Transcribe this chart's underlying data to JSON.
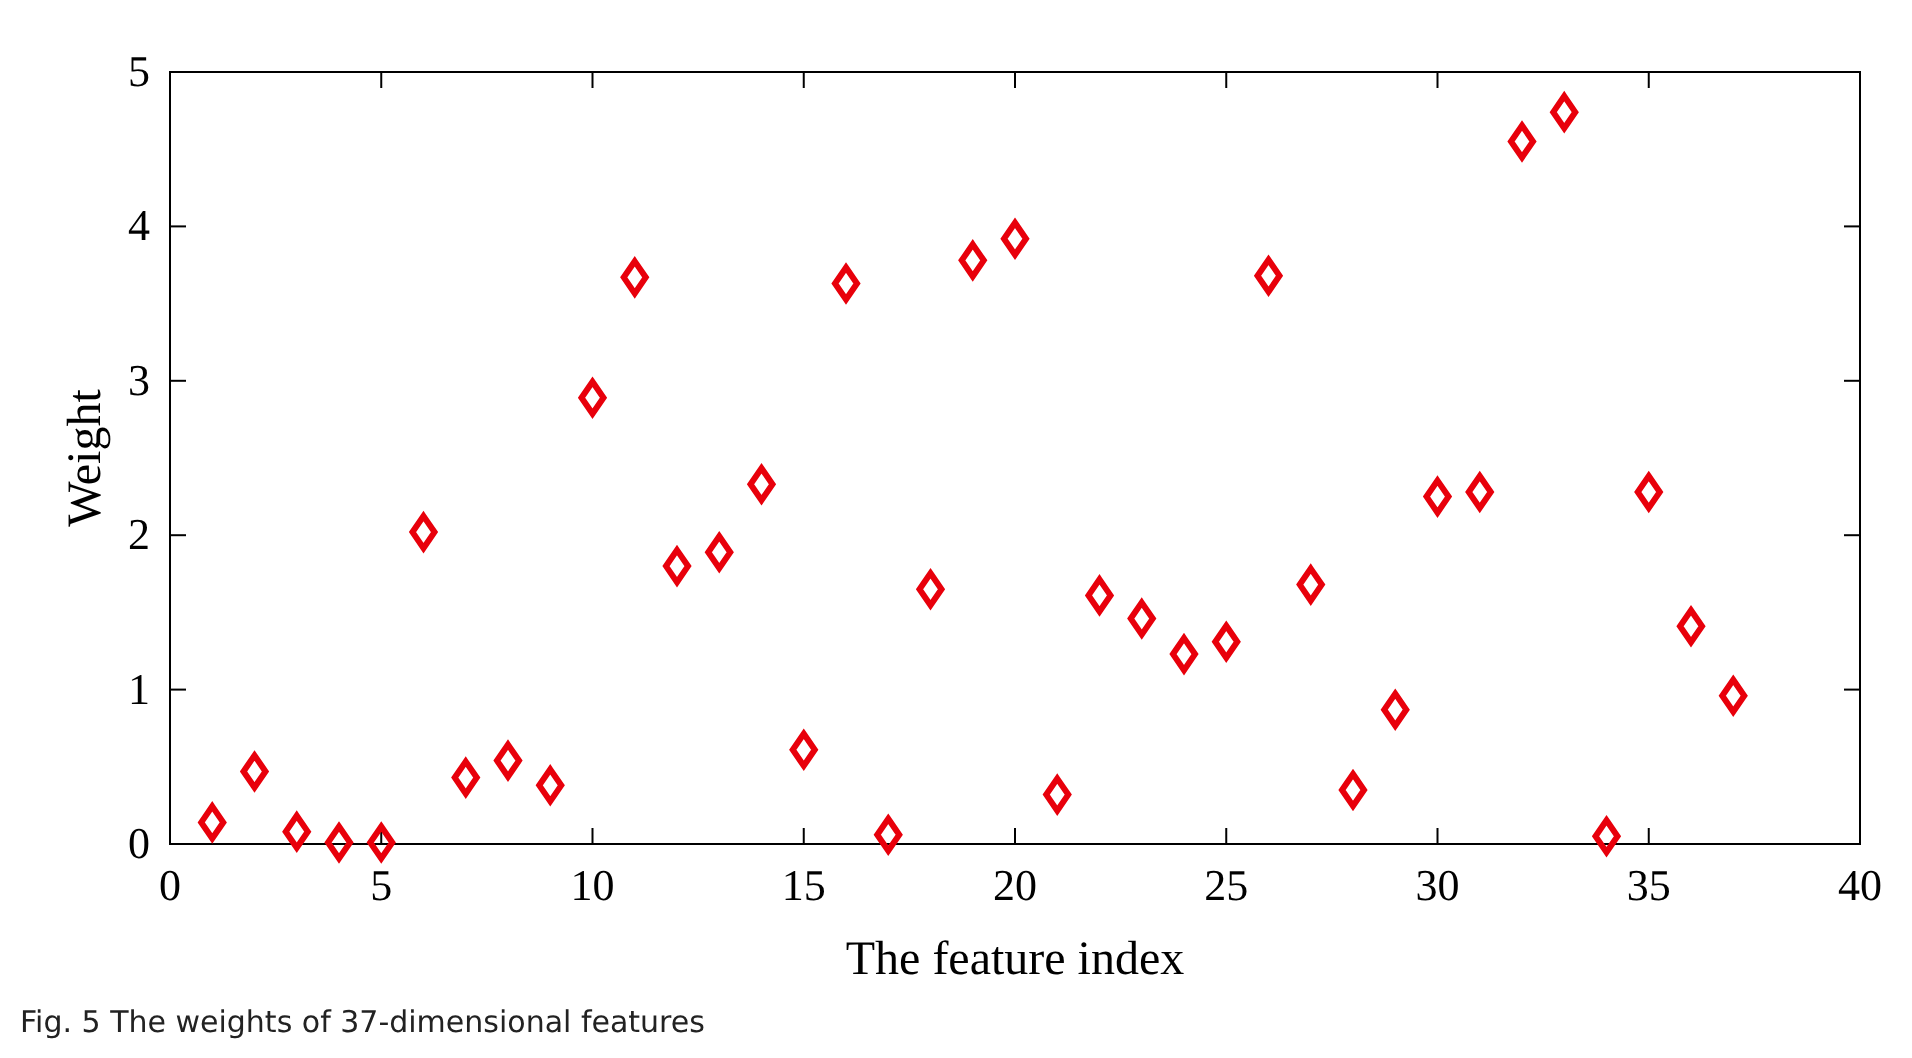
{
  "chart_data": {
    "type": "scatter",
    "xlabel": "The feature index",
    "ylabel": "Weight",
    "annotations": [
      "Fig. 5 The weights of 37-dimensional features"
    ],
    "x": [
      1,
      2,
      3,
      4,
      5,
      6,
      7,
      8,
      9,
      10,
      11,
      12,
      13,
      14,
      15,
      16,
      17,
      18,
      19,
      20,
      21,
      22,
      23,
      24,
      25,
      26,
      27,
      28,
      29,
      30,
      31,
      32,
      33,
      34,
      35,
      36,
      37
    ],
    "series": [
      {
        "color": "#e8000b",
        "values": [
          0.14,
          0.47,
          0.08,
          0.01,
          0.01,
          2.02,
          0.43,
          0.54,
          0.38,
          2.89,
          3.67,
          1.8,
          1.89,
          2.33,
          0.61,
          3.63,
          0.06,
          1.65,
          3.78,
          3.92,
          0.32,
          1.61,
          1.46,
          1.23,
          1.31,
          3.68,
          1.68,
          0.35,
          0.87,
          2.25,
          2.28,
          4.55,
          4.74,
          0.05,
          2.28,
          1.41,
          0.96
        ]
      }
    ],
    "xlim": [
      0,
      40
    ],
    "xticks": [
      0,
      5,
      10,
      15,
      20,
      25,
      30,
      35,
      40
    ],
    "ylim": [
      0,
      5
    ],
    "yticks": [
      0,
      1,
      2,
      3,
      4,
      5
    ],
    "marker": "diamond",
    "grid": false
  }
}
